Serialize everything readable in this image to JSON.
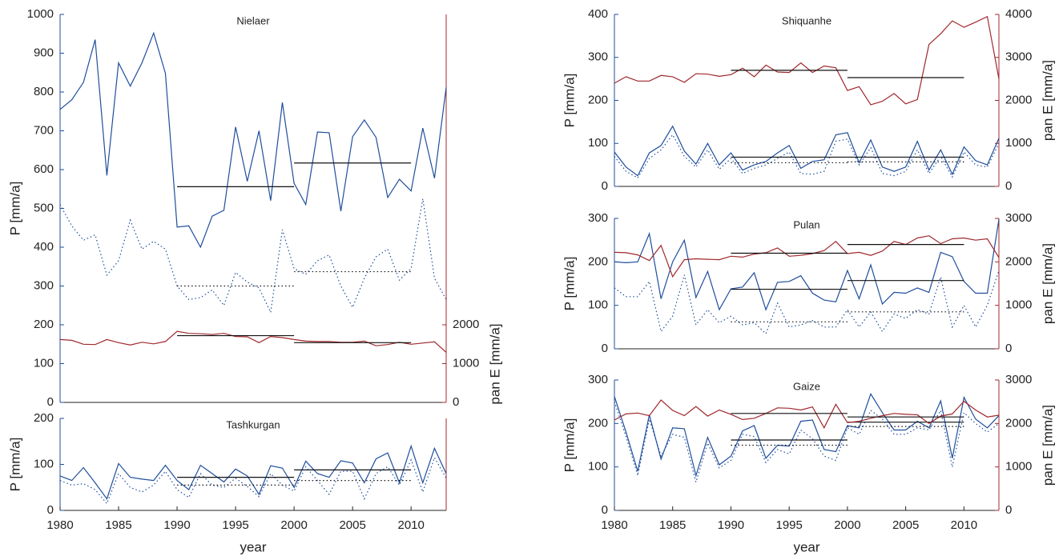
{
  "chart_data": [
    {
      "type": "line",
      "title": "Nielaer",
      "ylabel": "P [mm/a]",
      "y2label": "pan E [mm/a]",
      "x": [
        1980,
        1981,
        1982,
        1983,
        1984,
        1985,
        1986,
        1987,
        1988,
        1989,
        1990,
        1991,
        1992,
        1993,
        1994,
        1995,
        1996,
        1997,
        1998,
        1999,
        2000,
        2001,
        2002,
        2003,
        2004,
        2005,
        2006,
        2007,
        2008,
        2009,
        2010,
        2011,
        2012,
        2013
      ],
      "xlim": [
        1980,
        2013
      ],
      "ylim": [
        0,
        1000
      ],
      "yticks": [
        0,
        100,
        200,
        300,
        400,
        500,
        600,
        700,
        800,
        900,
        1000
      ],
      "y2lim": [
        0,
        10000
      ],
      "y2ticks": [
        0,
        1000,
        2000
      ],
      "series": [
        {
          "color": "#1f4e9c",
          "style": "solid",
          "values": [
            755,
            780,
            825,
            935,
            585,
            875,
            815,
            875,
            952,
            848,
            452,
            455,
            400,
            480,
            495,
            710,
            570,
            700,
            520,
            773,
            565,
            510,
            697,
            695,
            493,
            685,
            728,
            683,
            528,
            575,
            545,
            707,
            578,
            812
          ],
          "means": [
            {
              "x": [
                1990,
                2000
              ],
              "value": 556
            },
            {
              "x": [
                2000,
                2010
              ],
              "value": 617
            }
          ]
        },
        {
          "color": "#1f4e9c",
          "style": "dotted",
          "values": [
            510,
            455,
            418,
            432,
            328,
            365,
            470,
            395,
            415,
            395,
            300,
            265,
            270,
            290,
            250,
            335,
            310,
            295,
            232,
            445,
            345,
            330,
            365,
            380,
            300,
            245,
            320,
            375,
            395,
            315,
            345,
            525,
            320,
            265
          ],
          "means": [
            {
              "x": [
                1990,
                2000
              ],
              "value": 300
            },
            {
              "x": [
                2000,
                2010
              ],
              "value": 337
            }
          ]
        },
        {
          "color": "#a0282d",
          "style": "solid",
          "axis": "y2",
          "values": [
            1620,
            1600,
            1500,
            1490,
            1620,
            1540,
            1480,
            1550,
            1510,
            1570,
            1830,
            1780,
            1770,
            1750,
            1780,
            1700,
            1690,
            1540,
            1700,
            1670,
            1620,
            1580,
            1570,
            1570,
            1550,
            1550,
            1580,
            1460,
            1490,
            1550,
            1500,
            1530,
            1560,
            1290
          ],
          "means": [
            {
              "x": [
                1990,
                2000
              ],
              "value": 1720
            },
            {
              "x": [
                2000,
                2010
              ],
              "value": 1540
            }
          ]
        }
      ]
    },
    {
      "type": "line",
      "title": "Tashkurgan",
      "ylabel": "P [mm/a]",
      "xlabel": "year",
      "x": [
        1980,
        1981,
        1982,
        1983,
        1984,
        1985,
        1986,
        1987,
        1988,
        1989,
        1990,
        1991,
        1992,
        1993,
        1994,
        1995,
        1996,
        1997,
        1998,
        1999,
        2000,
        2001,
        2002,
        2003,
        2004,
        2005,
        2006,
        2007,
        2008,
        2009,
        2010,
        2011,
        2012,
        2013
      ],
      "xlim": [
        1980,
        2013
      ],
      "xticks": [
        1980,
        1985,
        1990,
        1995,
        2000,
        2005,
        2010
      ],
      "ylim": [
        0,
        200
      ],
      "yticks": [
        0,
        100,
        200
      ],
      "series": [
        {
          "color": "#1f4e9c",
          "style": "solid",
          "values": [
            75,
            65,
            93,
            60,
            25,
            102,
            72,
            68,
            65,
            98,
            65,
            45,
            98,
            80,
            62,
            90,
            75,
            35,
            97,
            92,
            50,
            107,
            80,
            72,
            108,
            103,
            60,
            112,
            125,
            60,
            140,
            60,
            135,
            80
          ],
          "means": [
            {
              "x": [
                1990,
                2000
              ],
              "value": 72
            },
            {
              "x": [
                2000,
                2010
              ],
              "value": 88
            }
          ]
        },
        {
          "color": "#1f4e9c",
          "style": "dotted",
          "values": [
            65,
            55,
            58,
            45,
            15,
            80,
            50,
            40,
            55,
            85,
            45,
            28,
            80,
            55,
            50,
            70,
            52,
            30,
            80,
            55,
            42,
            95,
            65,
            35,
            85,
            85,
            25,
            80,
            95,
            55,
            110,
            40,
            115,
            70
          ],
          "means": [
            {
              "x": [
                1990,
                2000
              ],
              "value": 55
            },
            {
              "x": [
                2000,
                2010
              ],
              "value": 65
            }
          ]
        }
      ]
    },
    {
      "type": "line",
      "title": "Shiquanhe",
      "ylabel": "P [mm/a]",
      "y2label": "pan E [mm/a]",
      "x": [
        1980,
        1981,
        1982,
        1983,
        1984,
        1985,
        1986,
        1987,
        1988,
        1989,
        1990,
        1991,
        1992,
        1993,
        1994,
        1995,
        1996,
        1997,
        1998,
        1999,
        2000,
        2001,
        2002,
        2003,
        2004,
        2005,
        2006,
        2007,
        2008,
        2009,
        2010,
        2011,
        2012,
        2013
      ],
      "xlim": [
        1980,
        2013
      ],
      "ylim": [
        0,
        400
      ],
      "yticks": [
        0,
        100,
        200,
        300,
        400
      ],
      "y2lim": [
        0,
        4000
      ],
      "y2ticks": [
        0,
        1000,
        2000,
        3000,
        4000
      ],
      "series": [
        {
          "color": "#1f4e9c",
          "style": "solid",
          "values": [
            80,
            45,
            25,
            78,
            95,
            140,
            82,
            52,
            100,
            50,
            78,
            38,
            50,
            58,
            78,
            95,
            42,
            58,
            62,
            120,
            125,
            55,
            108,
            45,
            35,
            45,
            105,
            38,
            85,
            28,
            92,
            60,
            50,
            112
          ],
          "means": [
            {
              "x": [
                1990,
                2000
              ],
              "value": 68
            },
            {
              "x": [
                2000,
                2010
              ],
              "value": 68
            }
          ]
        },
        {
          "color": "#1f4e9c",
          "style": "dotted",
          "values": [
            70,
            35,
            20,
            65,
            85,
            120,
            70,
            45,
            85,
            40,
            65,
            30,
            42,
            50,
            65,
            80,
            30,
            28,
            35,
            105,
            110,
            50,
            90,
            30,
            25,
            35,
            85,
            30,
            70,
            22,
            80,
            50,
            45,
            100
          ],
          "means": [
            {
              "x": [
                1990,
                2000
              ],
              "value": 55
            },
            {
              "x": [
                2000,
                2010
              ],
              "value": 57
            }
          ]
        },
        {
          "color": "#a0282d",
          "style": "solid",
          "axis": "y2",
          "values": [
            2400,
            2550,
            2450,
            2450,
            2580,
            2550,
            2420,
            2620,
            2610,
            2560,
            2600,
            2750,
            2550,
            2820,
            2660,
            2650,
            2870,
            2650,
            2800,
            2760,
            2230,
            2320,
            1900,
            1980,
            2160,
            1920,
            2020,
            3300,
            3550,
            3850,
            3700,
            3820,
            3950,
            2500
          ],
          "means": [
            {
              "x": [
                1990,
                2000
              ],
              "value": 2700
            },
            {
              "x": [
                2000,
                2010
              ],
              "value": 2530
            }
          ]
        }
      ]
    },
    {
      "type": "line",
      "title": "Pulan",
      "ylabel": "P [mm/a]",
      "y2label": "pan E [mm/a]",
      "x": [
        1980,
        1981,
        1982,
        1983,
        1984,
        1985,
        1986,
        1987,
        1988,
        1989,
        1990,
        1991,
        1992,
        1993,
        1994,
        1995,
        1996,
        1997,
        1998,
        1999,
        2000,
        2001,
        2002,
        2003,
        2004,
        2005,
        2006,
        2007,
        2008,
        2009,
        2010,
        2011,
        2012,
        2013
      ],
      "xlim": [
        1980,
        2013
      ],
      "ylim": [
        0,
        300
      ],
      "yticks": [
        0,
        100,
        200,
        300
      ],
      "y2lim": [
        0,
        3000
      ],
      "y2ticks": [
        0,
        1000,
        2000,
        3000
      ],
      "series": [
        {
          "color": "#1f4e9c",
          "style": "solid",
          "values": [
            200,
            198,
            200,
            265,
            115,
            200,
            250,
            118,
            178,
            90,
            138,
            142,
            175,
            90,
            153,
            155,
            168,
            128,
            112,
            108,
            180,
            115,
            193,
            103,
            130,
            128,
            140,
            130,
            222,
            212,
            155,
            128,
            128,
            298
          ],
          "means": [
            {
              "x": [
                1990,
                2000
              ],
              "value": 137
            },
            {
              "x": [
                2000,
                2010
              ],
              "value": 157
            }
          ]
        },
        {
          "color": "#1f4e9c",
          "style": "dotted",
          "values": [
            140,
            120,
            120,
            155,
            40,
            75,
            170,
            55,
            90,
            60,
            75,
            55,
            60,
            35,
            105,
            50,
            55,
            65,
            50,
            50,
            90,
            50,
            85,
            40,
            80,
            70,
            90,
            80,
            165,
            50,
            100,
            50,
            100,
            180
          ],
          "means": [
            {
              "x": [
                1990,
                2000
              ],
              "value": 62
            },
            {
              "x": [
                2000,
                2010
              ],
              "value": 85
            }
          ]
        },
        {
          "color": "#a0282d",
          "style": "solid",
          "axis": "y2",
          "values": [
            2220,
            2210,
            2160,
            2030,
            2380,
            1660,
            2050,
            2070,
            2060,
            2050,
            2130,
            2110,
            2180,
            2210,
            2320,
            2130,
            2150,
            2190,
            2260,
            2470,
            2190,
            2220,
            2150,
            2250,
            2470,
            2400,
            2550,
            2600,
            2420,
            2530,
            2550,
            2500,
            2530,
            2100
          ],
          "means": [
            {
              "x": [
                1990,
                2000
              ],
              "value": 2200
            },
            {
              "x": [
                2000,
                2010
              ],
              "value": 2400
            }
          ]
        }
      ]
    },
    {
      "type": "line",
      "title": "Gaize",
      "ylabel": "P [mm/a]",
      "y2label": "pan E [mm/a]",
      "xlabel": "year",
      "x": [
        1980,
        1981,
        1982,
        1983,
        1984,
        1985,
        1986,
        1987,
        1988,
        1989,
        1990,
        1991,
        1992,
        1993,
        1994,
        1995,
        1996,
        1997,
        1998,
        1999,
        2000,
        2001,
        2002,
        2003,
        2004,
        2005,
        2006,
        2007,
        2008,
        2009,
        2010,
        2011,
        2012,
        2013
      ],
      "xlim": [
        1980,
        2013
      ],
      "xticks": [
        1980,
        1985,
        1990,
        1995,
        2000,
        2005,
        2010
      ],
      "ylim": [
        0,
        300
      ],
      "yticks": [
        0,
        100,
        200,
        300
      ],
      "y2lim": [
        0,
        3000
      ],
      "y2ticks": [
        0,
        1000,
        2000,
        3000
      ],
      "series": [
        {
          "color": "#1f4e9c",
          "style": "solid",
          "values": [
            262,
            180,
            90,
            220,
            118,
            190,
            188,
            80,
            168,
            105,
            125,
            183,
            195,
            120,
            150,
            148,
            205,
            208,
            140,
            135,
            195,
            190,
            268,
            225,
            185,
            185,
            205,
            190,
            252,
            120,
            260,
            210,
            190,
            218
          ],
          "means": [
            {
              "x": [
                1990,
                2000
              ],
              "value": 162
            },
            {
              "x": [
                2000,
                2010
              ],
              "value": 203
            }
          ]
        },
        {
          "color": "#1f4e9c",
          "style": "dotted",
          "values": [
            250,
            170,
            80,
            210,
            125,
            175,
            168,
            65,
            155,
            98,
            115,
            175,
            170,
            110,
            140,
            130,
            185,
            165,
            125,
            115,
            190,
            175,
            230,
            210,
            175,
            175,
            190,
            185,
            230,
            100,
            225,
            200,
            180,
            200
          ],
          "means": [
            {
              "x": [
                1990,
                2000
              ],
              "value": 150
            },
            {
              "x": [
                2000,
                2010
              ],
              "value": 193
            }
          ]
        },
        {
          "color": "#a0282d",
          "style": "solid",
          "axis": "y2",
          "values": [
            2080,
            2220,
            2240,
            2180,
            2540,
            2300,
            2180,
            2390,
            2170,
            2310,
            2210,
            2090,
            2120,
            2230,
            2360,
            2350,
            2310,
            2380,
            1900,
            2440,
            2020,
            2050,
            2120,
            2180,
            2230,
            2210,
            2200,
            2000,
            2170,
            2220,
            2510,
            2310,
            2150,
            2190
          ],
          "means": [
            {
              "x": [
                1990,
                2000
              ],
              "value": 2230
            },
            {
              "x": [
                2000,
                2010
              ],
              "value": 2150
            }
          ]
        }
      ]
    }
  ]
}
